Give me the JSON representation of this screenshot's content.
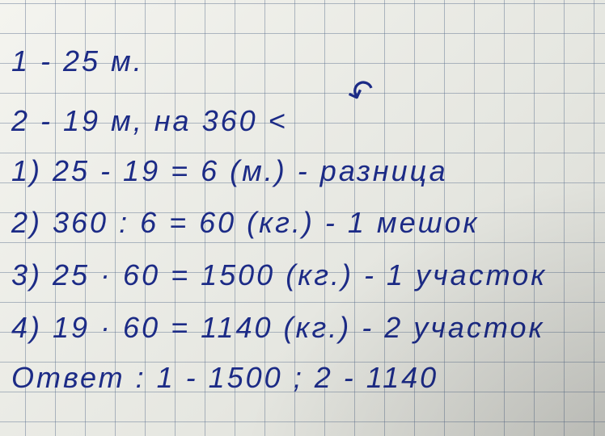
{
  "lines": [
    "1 - 25  м.",
    "2 - 19  м, на 360 <",
    "1) 25 - 19 = 6 (м.) - разница",
    "2)  360 : 6 = 60 (кг.) - 1 мешок",
    "3)  25 · 60 = 1500 (кг.) - 1 участок",
    "4) 19 · 60 = 1140 (кг.) - 2 участок",
    "Ответ : 1 - 1500 ; 2 - 1140"
  ],
  "ink_color": "#1c2b86"
}
